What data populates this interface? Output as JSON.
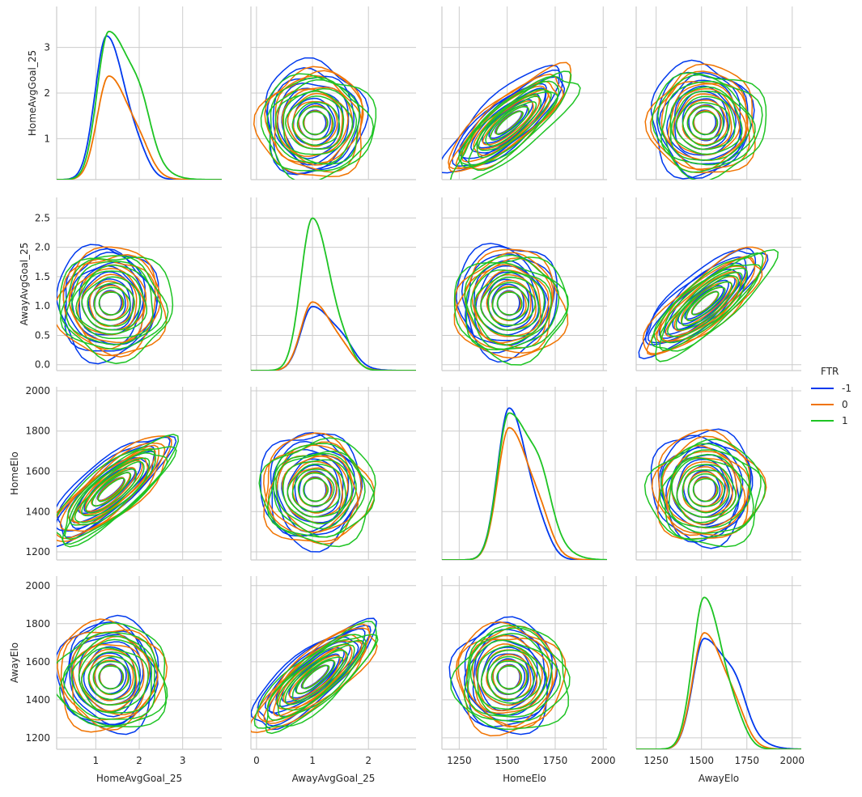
{
  "figure": {
    "legend": {
      "title": "FTR",
      "placement": "right"
    },
    "variables": [
      "HomeAvgGoal_25",
      "AwayAvgGoal_25",
      "HomeElo",
      "AwayElo"
    ]
  },
  "chart_data": {
    "type": "pairplot-kde",
    "hue": "FTR",
    "hue_levels": [
      {
        "label": "-1",
        "color": "#0039ee"
      },
      {
        "label": "0",
        "color": "#f07300"
      },
      {
        "label": "1",
        "color": "#1ec424"
      }
    ],
    "axes": {
      "HomeAvgGoal_25": {
        "label": "HomeAvgGoal_25",
        "lim": [
          0.1,
          3.9
        ],
        "ticks": [
          1,
          2,
          3
        ]
      },
      "AwayAvgGoal_25": {
        "label": "AwayAvgGoal_25",
        "lim": [
          -0.1,
          2.85
        ],
        "ticks": [
          0,
          1,
          2
        ]
      },
      "HomeElo": {
        "label": "HomeElo",
        "lim": [
          1160,
          2020
        ],
        "ticks": [
          1250,
          1500,
          1750,
          2000
        ],
        "y_ticks": [
          1200,
          1400,
          1600,
          1800,
          2000
        ]
      },
      "AwayElo": {
        "label": "AwayElo",
        "lim": [
          1140,
          2050
        ],
        "ticks": [
          1250,
          1500,
          1750,
          2000
        ],
        "y_ticks": [
          1200,
          1400,
          1600,
          1800,
          2000
        ]
      }
    },
    "row_y_ticks": {
      "HomeAvgGoal_25": [
        1,
        2,
        3
      ],
      "AwayAvgGoal_25": [
        0.0,
        0.5,
        1.0,
        1.5,
        2.0,
        2.5
      ],
      "HomeElo": [
        1200,
        1400,
        1600,
        1800,
        2000
      ],
      "AwayElo": [
        1200,
        1400,
        1600,
        1800,
        2000
      ]
    },
    "diagonal_kde": {
      "HomeAvgGoal_25": [
        {
          "hue": "-1",
          "mode": 1.25,
          "peak": 3.5,
          "skew": 0.35
        },
        {
          "hue": "0",
          "mode": 1.3,
          "peak": 2.55,
          "skew": 0.5
        },
        {
          "hue": "1",
          "mode": 1.3,
          "peak": 3.7,
          "skew": 0.7
        }
      ],
      "AwayAvgGoal_25": [
        {
          "hue": "-1",
          "mode": 1.0,
          "peak": 1.18,
          "skew": 0.6
        },
        {
          "hue": "0",
          "mode": 1.0,
          "peak": 1.25,
          "skew": 0.45
        },
        {
          "hue": "1",
          "mode": 1.0,
          "peak": 2.75,
          "skew": 0.3
        }
      ],
      "HomeElo": [
        {
          "hue": "-1",
          "mode": 1510,
          "peak": 2.0,
          "skew": 0.35
        },
        {
          "hue": "0",
          "mode": 1510,
          "peak": 1.76,
          "skew": 0.5
        },
        {
          "hue": "1",
          "mode": 1510,
          "peak": 1.99,
          "skew": 0.75
        }
      ],
      "AwayElo": [
        {
          "hue": "-1",
          "mode": 1515,
          "peak": 1.5,
          "skew": 0.75
        },
        {
          "hue": "0",
          "mode": 1515,
          "peak": 1.55,
          "skew": 0.5
        },
        {
          "hue": "1",
          "mode": 1515,
          "peak": 2.0,
          "skew": 0.35
        }
      ]
    },
    "bivariate_kde_centers": {
      "HomeAvgGoal_25": 1.35,
      "AwayAvgGoal_25": 1.05,
      "HomeElo": 1510,
      "AwayElo": 1520
    },
    "grid": true
  }
}
